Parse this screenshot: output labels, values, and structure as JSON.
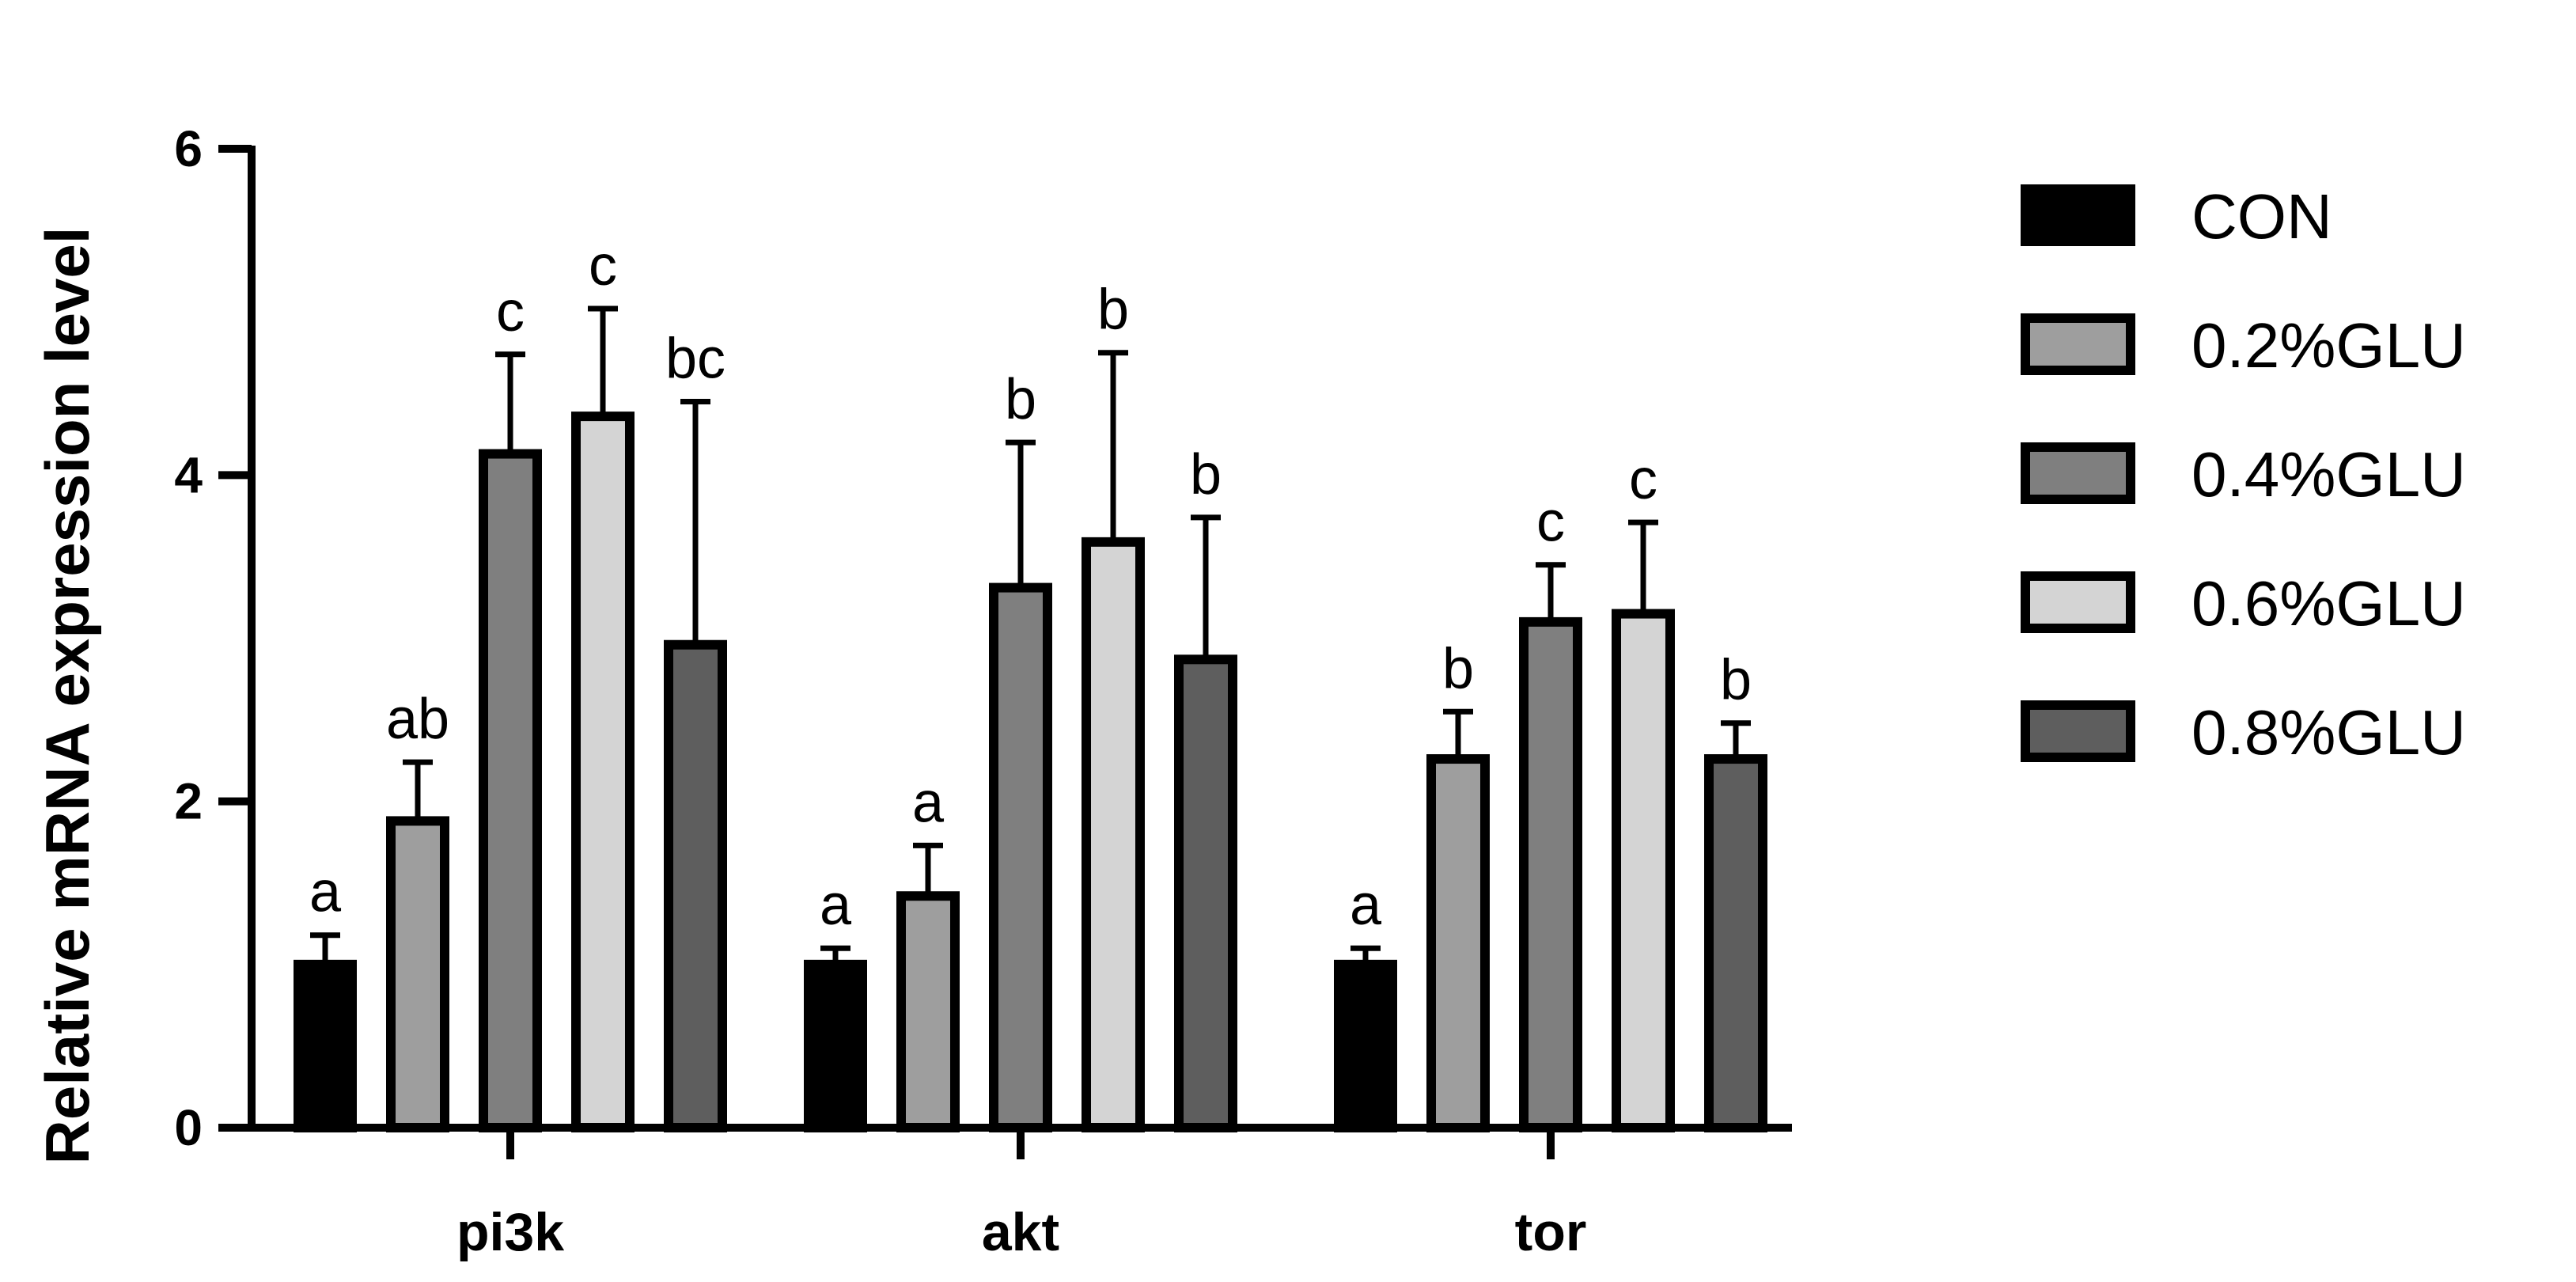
{
  "chart_data": {
    "type": "bar",
    "ylabel": "Relative mRNA expression level",
    "xlabel": "",
    "ylim": [
      0,
      6
    ],
    "yticks": [
      0,
      2,
      4,
      6
    ],
    "categories": [
      "pi3k",
      "akt",
      "tor"
    ],
    "grid": false,
    "legend_position": "right",
    "error_bars": "upper",
    "series": [
      {
        "name": "CON",
        "color": "#000000",
        "values": [
          1.0,
          1.0,
          1.0
        ],
        "errors": [
          0.18,
          0.1,
          0.1
        ],
        "labels": [
          "a",
          "a",
          "a"
        ]
      },
      {
        "name": "0.2%GLU",
        "color": "#9e9e9e",
        "values": [
          1.88,
          1.42,
          2.26
        ],
        "errors": [
          0.36,
          0.31,
          0.29
        ],
        "labels": [
          "ab",
          "a",
          "b"
        ]
      },
      {
        "name": "0.4%GLU",
        "color": "#7f7f7f",
        "values": [
          4.13,
          3.31,
          3.1
        ],
        "errors": [
          0.61,
          0.89,
          0.35
        ],
        "labels": [
          "c",
          "b",
          "c"
        ]
      },
      {
        "name": "0.6%GLU",
        "color": "#d4d4d4",
        "values": [
          4.36,
          3.59,
          3.15
        ],
        "errors": [
          0.66,
          1.16,
          0.56
        ],
        "labels": [
          "c",
          "b",
          "c"
        ]
      },
      {
        "name": "0.8%GLU",
        "color": "#5e5e5e",
        "values": [
          2.96,
          2.87,
          2.26
        ],
        "errors": [
          1.49,
          0.87,
          0.22
        ],
        "labels": [
          "bc",
          "b",
          "b"
        ]
      }
    ]
  }
}
